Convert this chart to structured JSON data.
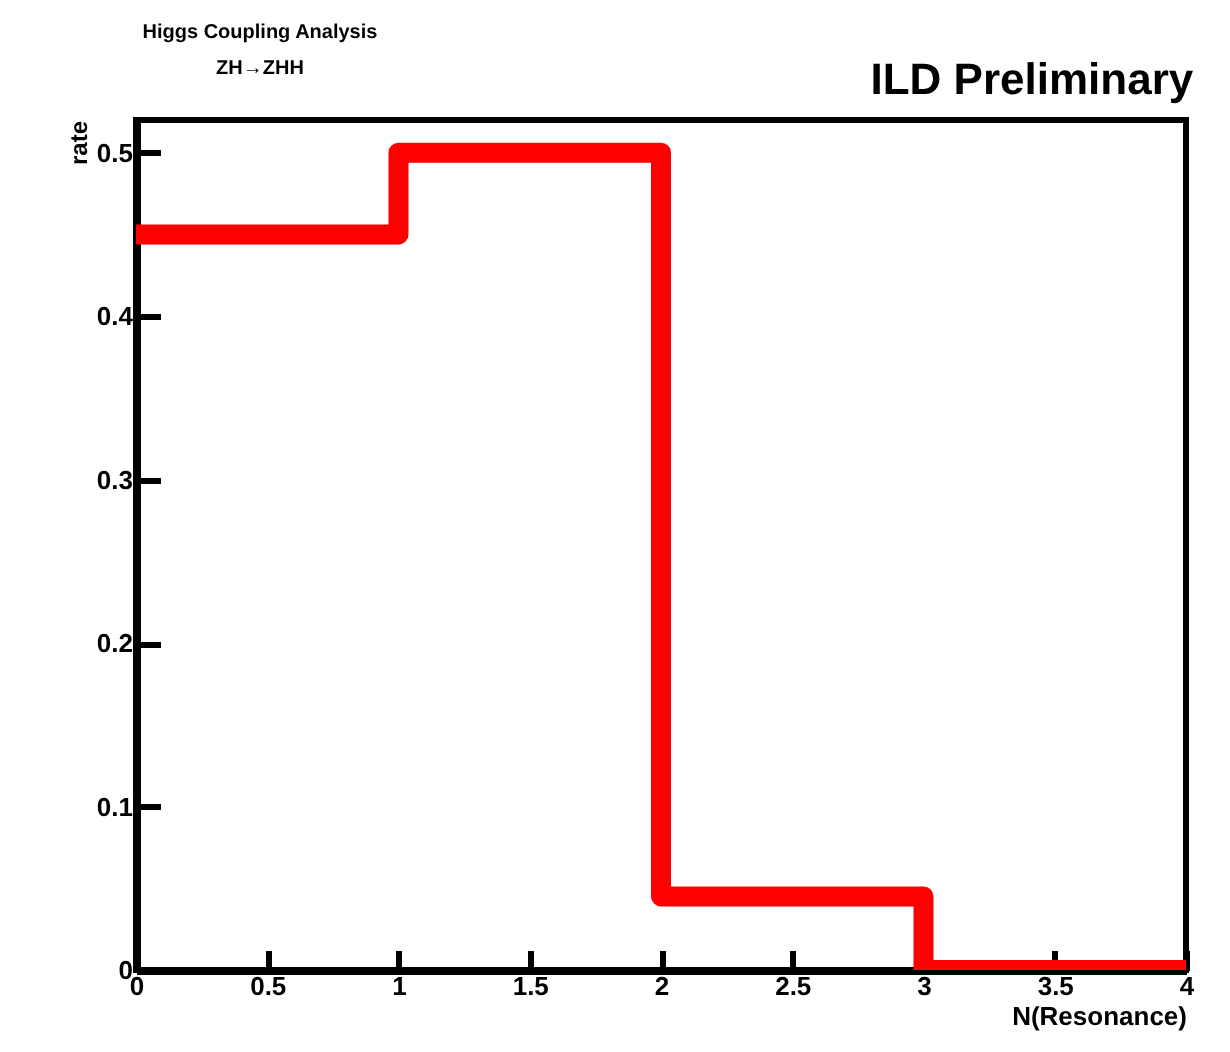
{
  "chart_data": {
    "type": "histogram",
    "title": "ILD Preliminary",
    "annotations": [
      "Higgs Coupling Analysis",
      "ZH→ZHH"
    ],
    "xlabel": "N(Resonance)",
    "ylabel": "rate",
    "bins": [
      0,
      1,
      2,
      3,
      4
    ],
    "values": [
      0.45,
      0.5,
      0.045,
      0
    ],
    "color": "#ff0000",
    "xlim": [
      0,
      4
    ],
    "xticks": [
      0,
      0.5,
      1,
      1.5,
      2,
      2.5,
      3,
      3.5,
      4
    ],
    "ylim": [
      0,
      0.52
    ],
    "yticks": [
      0,
      0.1,
      0.2,
      0.3,
      0.4,
      0.5
    ],
    "grid": false
  }
}
